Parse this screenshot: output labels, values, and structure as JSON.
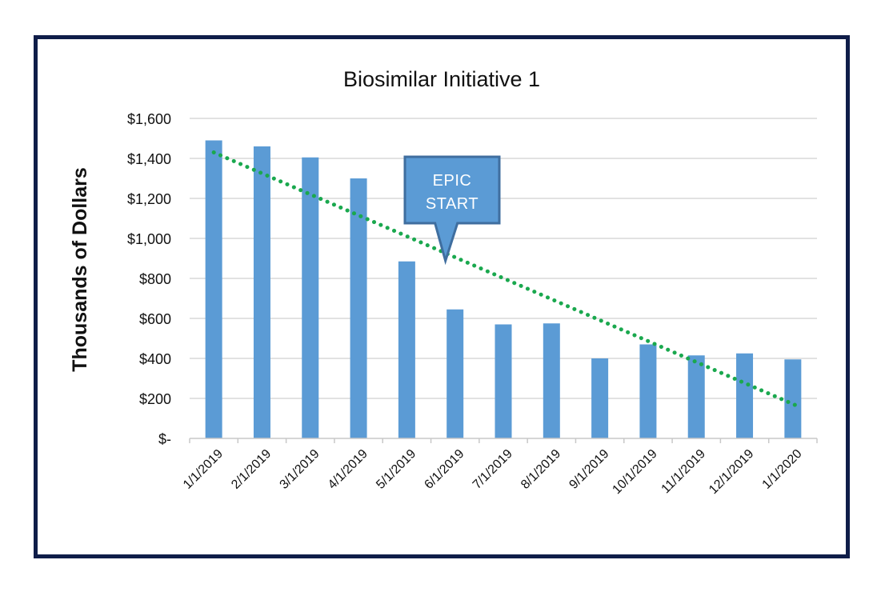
{
  "chart_data": {
    "type": "bar",
    "title": "Biosimilar Initiative 1",
    "xlabel": "",
    "ylabel": "Thousands of Dollars",
    "categories": [
      "1/1/2019",
      "2/1/2019",
      "3/1/2019",
      "4/1/2019",
      "5/1/2019",
      "6/1/2019",
      "7/1/2019",
      "8/1/2019",
      "9/1/2019",
      "10/1/2019",
      "11/1/2019",
      "12/1/2019",
      "1/1/2020"
    ],
    "values": [
      1490,
      1460,
      1405,
      1300,
      885,
      645,
      570,
      575,
      400,
      470,
      415,
      425,
      395
    ],
    "ylim": [
      0,
      1600
    ],
    "yticks": [
      0,
      200,
      400,
      600,
      800,
      1000,
      1200,
      1400,
      1600
    ],
    "ytick_labels": [
      "$-",
      "$200",
      "$400",
      "$600",
      "$800",
      "$1,000",
      "$1,200",
      "$1,400",
      "$1,600"
    ],
    "bar_color": "#5b9bd5",
    "grid": true,
    "trendline": {
      "type": "linear",
      "style": "dotted",
      "color": "#1aa84e",
      "start_value": 1430,
      "end_value": 165
    },
    "annotation": {
      "lines": [
        "EPIC",
        "START"
      ],
      "category": "6/1/2019",
      "fill": "#5b9bd5",
      "stroke": "#3f6e9f"
    }
  }
}
